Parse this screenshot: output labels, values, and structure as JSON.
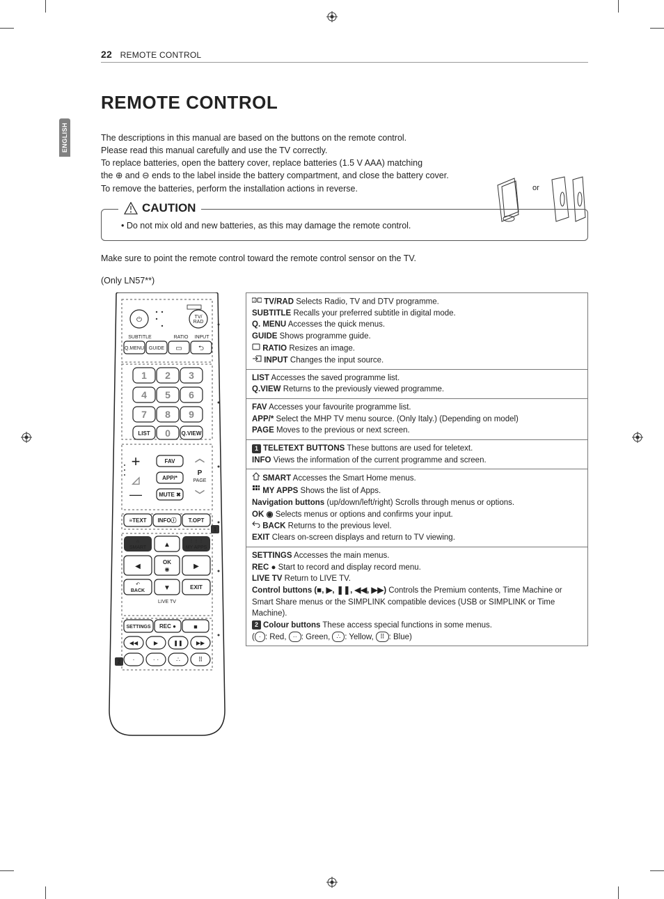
{
  "page_number": "22",
  "running_head": "REMOTE CONTROL",
  "language_tab": "ENGLISH",
  "title": "REMOTE CONTROL",
  "intro_lines": [
    "The descriptions in this manual are based on the buttons on the remote control.",
    "Please read this manual carefully and use the TV correctly.",
    "To replace batteries, open the battery cover, replace batteries (1.5 V AAA) matching",
    "the ⊕ and ⊖ ends to the label inside the battery compartment, and close the battery cover.",
    "To remove the batteries, perform the installation actions in reverse."
  ],
  "battery_or_label": "or",
  "caution_heading": "CAUTION",
  "caution_items": [
    "Do not mix old and new batteries, as this may damage the remote control."
  ],
  "sensor_note": "Make sure to point the remote control toward the remote control sensor on the TV.",
  "model_note": "(Only LN57**)",
  "remote": {
    "row1": {
      "power": "⏻",
      "tvrad": "TV/\nRAD"
    },
    "toplabels": {
      "subtitle": "SUBTITLE",
      "ratio": "RATIO",
      "input": "INPUT"
    },
    "row2": {
      "qmenu": "Q.MENU",
      "guide": "GUIDE",
      "ratio_icon": "▭",
      "input_icon": "⮌"
    },
    "numbers": [
      "1",
      "2",
      "3",
      "4",
      "5",
      "6",
      "7",
      "8",
      "9"
    ],
    "row6": {
      "list": "LIST",
      "zero": "0",
      "qview": "Q.VIEW"
    },
    "vol_block": {
      "plus": "+",
      "minus": "—",
      "vol_icon": "◿",
      "fav": "FAV",
      "app": "APP/*",
      "mute": "MUTE ✖",
      "p": "P",
      "page": "PAGE",
      "up": "︿",
      "down": "﹀"
    },
    "row_text": {
      "text": "≡TEXT",
      "info": "INFOⓘ",
      "topt": "T.OPT"
    },
    "row_smart": {
      "smart": "⌂\nSMART",
      "up": "▲",
      "myapps": "⋮⋮⋮\nMY APPS"
    },
    "row_ok": {
      "left": "◀",
      "ok": "OK\n◉",
      "right": "▶"
    },
    "row_back": {
      "back": "↶\nBACK",
      "down": "▼",
      "exit": "EXIT"
    },
    "livetv_label": "LIVE TV",
    "row_settings": {
      "settings": "SETTINGS",
      "rec": "REC ●",
      "stop": "■"
    },
    "row_transport": {
      "rw": "◀◀",
      "play": "▶",
      "pause": "❚❚",
      "ff": "▶▶"
    },
    "row_color": [
      "·",
      "· ·",
      "∴",
      "⠿"
    ]
  },
  "callouts": {
    "c1": "1",
    "c2": "2"
  },
  "descriptions": [
    {
      "rows": [
        {
          "icon": "tvrad",
          "label": "TV/RAD",
          "text": "Selects Radio, TV and DTV programme."
        },
        {
          "label": "SUBTITLE",
          "text": "Recalls your preferred subtitle in digital mode."
        },
        {
          "label": "Q. MENU",
          "text": "Accesses the quick menus."
        },
        {
          "label": "GUIDE",
          "text": "Shows programme guide."
        },
        {
          "icon": "ratio",
          "label": "RATIO",
          "text": "Resizes an image."
        },
        {
          "icon": "input",
          "label": "INPUT",
          "text": "Changes the input source."
        }
      ]
    },
    {
      "rows": [
        {
          "label": "LIST",
          "text": "Accesses the saved  programme list."
        },
        {
          "label": "Q.VIEW",
          "text": "Returns to the previously viewed programme."
        }
      ]
    },
    {
      "rows": [
        {
          "label": "FAV",
          "text": "Accesses your favourite programme list."
        },
        {
          "label": "APP/*",
          "text": "Select the MHP TV menu source. (Only Italy.) (Depending on model)"
        },
        {
          "label": "PAGE",
          "text": "Moves to the previous or next screen."
        }
      ]
    },
    {
      "rows": [
        {
          "badge": "1",
          "label": "TELETEXT BUTTONS",
          "text": "These buttons are used for teletext."
        },
        {
          "label": "INFO",
          "text": "Views the information of the current programme and screen."
        }
      ]
    },
    {
      "rows": [
        {
          "icon": "home",
          "label": "SMART",
          "text": "Accesses the Smart Home menus."
        },
        {
          "icon": "apps",
          "label": "MY APPS",
          "text": "Shows the list of Apps."
        },
        {
          "label": "Navigation buttons",
          "text": "(up/down/left/right) Scrolls through menus or options."
        },
        {
          "label": "OK ◉",
          "text": "Selects menus or options and confirms your input."
        },
        {
          "icon": "back",
          "label": "BACK",
          "text": "Returns to the previous level."
        },
        {
          "label": "EXIT",
          "text": "Clears on-screen displays and return to TV viewing."
        }
      ]
    },
    {
      "rows": [
        {
          "label": "SETTINGS",
          "text": "Accesses the main menus."
        },
        {
          "label": "REC ●",
          "text": "Start to record and display record menu."
        },
        {
          "label": "LIVE TV",
          "text": "Return to LIVE TV."
        },
        {
          "label": "Control buttons (■, ▶, ❚❚, ◀◀, ▶▶)",
          "text": "Controls the Premium contents, Time Machine or Smart Share menus or the SIMPLINK compatible devices (USB or SIMPLINK or Time Machine)."
        },
        {
          "badge": "2",
          "label": "Colour buttons",
          "text": "These access special functions in some menus.",
          "extra": "color_legend"
        }
      ]
    }
  ],
  "color_legend": {
    "red": "Red",
    "green": "Green",
    "yellow": "Yellow",
    "blue": "Blue"
  },
  "colors": {
    "text": "#222222",
    "rule": "#999999",
    "border": "#777777",
    "tab_bg": "#808080",
    "tab_fg": "#ffffff",
    "badge_bg": "#333333"
  }
}
